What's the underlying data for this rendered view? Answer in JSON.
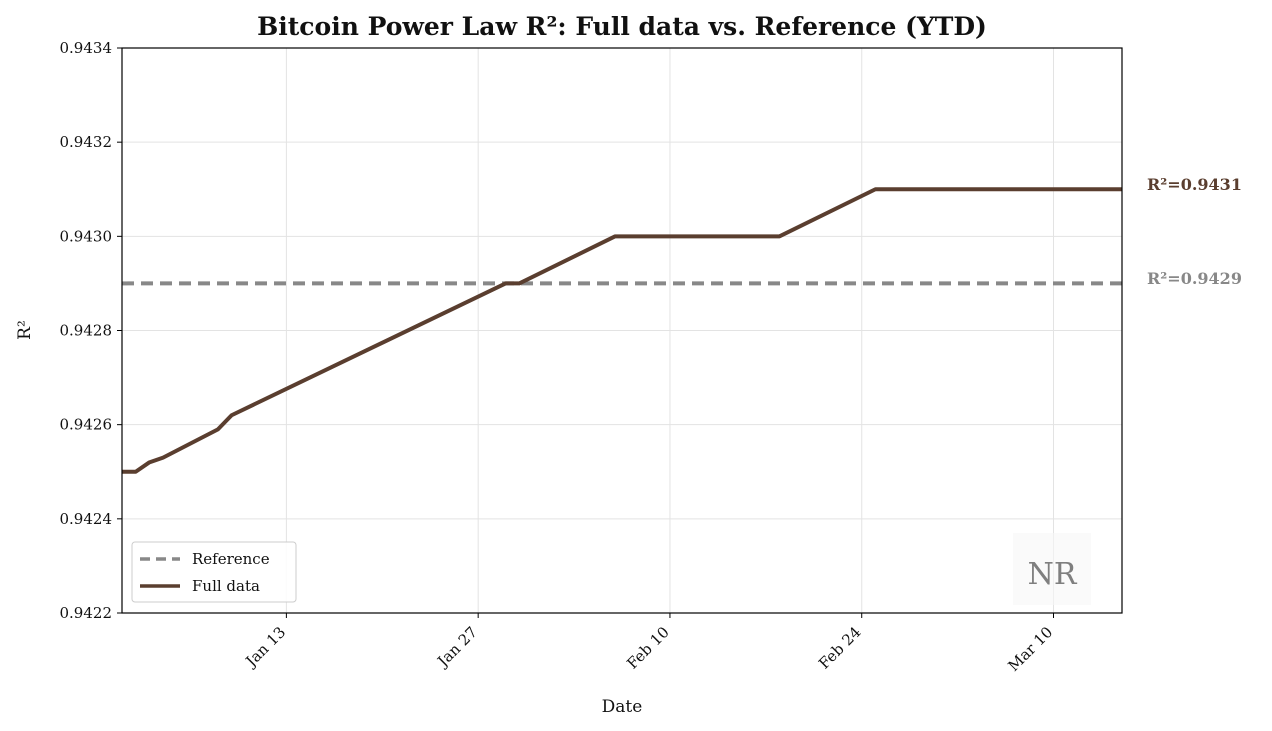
{
  "chart_data": {
    "type": "line",
    "title": "Bitcoin Power Law R²: Full data vs. Reference (YTD)",
    "xlabel": "Date",
    "ylabel": "R²",
    "x_type": "date",
    "xlim": [
      "2025-01-01",
      "2025-03-15"
    ],
    "ylim": [
      0.9422,
      0.9434
    ],
    "y_ticks": [
      "0.9422",
      "0.9424",
      "0.9426",
      "0.9428",
      "0.9430",
      "0.9432",
      "0.9434"
    ],
    "x_ticks": [
      {
        "date": "2025-01-13",
        "label": "Jan 13"
      },
      {
        "date": "2025-01-27",
        "label": "Jan 27"
      },
      {
        "date": "2025-02-10",
        "label": "Feb 10"
      },
      {
        "date": "2025-02-24",
        "label": "Feb 24"
      },
      {
        "date": "2025-03-10",
        "label": "Mar 10"
      }
    ],
    "grid": true,
    "legend_position": "lower-left",
    "series": [
      {
        "name": "Reference",
        "style": "dashed",
        "color": "#888888",
        "points": [
          {
            "x": "2025-01-01",
            "y": 0.9429
          },
          {
            "x": "2025-03-15",
            "y": 0.9429
          }
        ]
      },
      {
        "name": "Full data",
        "style": "solid",
        "color": "#5a3e2f",
        "points": [
          {
            "x": "2025-01-01",
            "y": 0.9425
          },
          {
            "x": "2025-01-02",
            "y": 0.9425
          },
          {
            "x": "2025-01-03",
            "y": 0.94252
          },
          {
            "x": "2025-01-04",
            "y": 0.94253
          },
          {
            "x": "2025-01-08",
            "y": 0.94259
          },
          {
            "x": "2025-01-09",
            "y": 0.94262
          },
          {
            "x": "2025-01-29",
            "y": 0.9429
          },
          {
            "x": "2025-01-30",
            "y": 0.9429
          },
          {
            "x": "2025-02-06",
            "y": 0.943
          },
          {
            "x": "2025-02-18",
            "y": 0.943
          },
          {
            "x": "2025-02-25",
            "y": 0.9431
          },
          {
            "x": "2025-03-15",
            "y": 0.9431
          }
        ]
      }
    ],
    "annotations": [
      {
        "text": "R²=0.9431",
        "y": 0.9431,
        "color": "#5a3e2f"
      },
      {
        "text": "R²=0.9429",
        "y": 0.9429,
        "color": "#888888"
      }
    ],
    "watermark": "NR"
  }
}
